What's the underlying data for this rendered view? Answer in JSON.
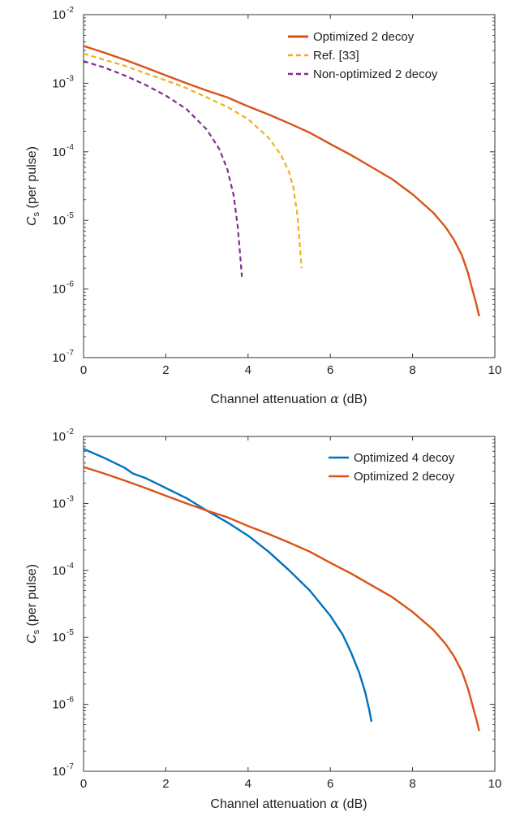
{
  "figure": {
    "colors": {
      "frame": "#333333",
      "text": "#222222",
      "background": "#ffffff"
    }
  },
  "chart_data": [
    {
      "type": "line",
      "xlabel_prefix": "Channel attenuation ",
      "xlabel_symbol": "α",
      "xlabel_suffix": " (dB)",
      "ylabel_symbol": "C",
      "ylabel_sub": "s",
      "ylabel_suffix": " (per pulse)",
      "xlim": [
        0,
        10
      ],
      "ylim_log10": [
        -7,
        -2
      ],
      "x_ticks": [
        0,
        2,
        4,
        6,
        8,
        10
      ],
      "y_ticks": [
        {
          "base": "10",
          "exp": "-2",
          "log": -2
        },
        {
          "base": "10",
          "exp": "-3",
          "log": -3
        },
        {
          "base": "10",
          "exp": "-4",
          "log": -4
        },
        {
          "base": "10",
          "exp": "-5",
          "log": -5
        },
        {
          "base": "10",
          "exp": "-6",
          "log": -6
        },
        {
          "base": "10",
          "exp": "-7",
          "log": -7
        }
      ],
      "legend_position": "top-right",
      "grid": false,
      "series": [
        {
          "name": "Optimized 2 decoy",
          "color": "#d95319",
          "dash": "solid",
          "x": [
            0,
            0.5,
            1,
            1.5,
            2,
            2.5,
            3,
            3.5,
            4,
            4.5,
            5,
            5.5,
            6,
            6.5,
            7,
            7.5,
            8,
            8.5,
            8.8,
            9,
            9.2,
            9.35,
            9.45,
            9.55,
            9.62
          ],
          "y": [
            0.0035,
            0.0028,
            0.0022,
            0.0017,
            0.0013,
            0.001,
            0.00078,
            0.00062,
            0.00046,
            0.00035,
            0.00026,
            0.00019,
            0.00013,
            9e-05,
            6e-05,
            4e-05,
            2.4e-05,
            1.3e-05,
            8e-06,
            5.3e-06,
            3.1e-06,
            1.7e-06,
            1e-06,
            6e-07,
            4e-07
          ]
        },
        {
          "name": "Ref. [33]",
          "color": "#edb120",
          "dash": "dashed",
          "x": [
            0,
            0.5,
            1,
            1.5,
            2,
            2.5,
            3,
            3.5,
            4,
            4.5,
            4.8,
            5,
            5.1,
            5.2,
            5.25,
            5.3
          ],
          "y": [
            0.0027,
            0.0022,
            0.0018,
            0.0014,
            0.0011,
            0.00085,
            0.00062,
            0.00045,
            0.0003,
            0.00016,
            9e-05,
            5e-05,
            3e-05,
            1.2e-05,
            5e-06,
            2e-06
          ]
        },
        {
          "name": "Non-optimized 2 decoy",
          "color": "#7e2f8e",
          "dash": "dashed",
          "x": [
            0,
            0.5,
            1,
            1.5,
            2,
            2.5,
            3,
            3.3,
            3.5,
            3.65,
            3.75,
            3.8,
            3.85
          ],
          "y": [
            0.0021,
            0.0017,
            0.0013,
            0.00095,
            0.00066,
            0.00042,
            0.00021,
            0.00011,
            5.5e-05,
            2.3e-05,
            8e-06,
            3.5e-06,
            1.5e-06
          ]
        }
      ]
    },
    {
      "type": "line",
      "xlabel_prefix": "Channel attenuation ",
      "xlabel_symbol": "α",
      "xlabel_suffix": " (dB)",
      "ylabel_symbol": "C",
      "ylabel_sub": "s",
      "ylabel_suffix": " (per pulse)",
      "xlim": [
        0,
        10
      ],
      "ylim_log10": [
        -7,
        -2
      ],
      "x_ticks": [
        0,
        2,
        4,
        6,
        8,
        10
      ],
      "y_ticks": [
        {
          "base": "10",
          "exp": "-2",
          "log": -2
        },
        {
          "base": "10",
          "exp": "-3",
          "log": -3
        },
        {
          "base": "10",
          "exp": "-4",
          "log": -4
        },
        {
          "base": "10",
          "exp": "-5",
          "log": -5
        },
        {
          "base": "10",
          "exp": "-6",
          "log": -6
        },
        {
          "base": "10",
          "exp": "-7",
          "log": -7
        }
      ],
      "legend_position": "top-right",
      "grid": false,
      "series": [
        {
          "name": "Optimized 4 decoy",
          "color": "#0072bd",
          "dash": "solid",
          "x": [
            0,
            0.5,
            1,
            1.2,
            1.5,
            2,
            2.5,
            3,
            3.5,
            4,
            4.5,
            5,
            5.5,
            6,
            6.3,
            6.5,
            6.7,
            6.85,
            6.95,
            7
          ],
          "y": [
            0.0065,
            0.0048,
            0.0034,
            0.0028,
            0.0024,
            0.0017,
            0.0012,
            0.00078,
            0.00052,
            0.00033,
            0.00019,
            0.0001,
            5e-05,
            2.1e-05,
            1.1e-05,
            6e-06,
            3e-06,
            1.5e-06,
            8e-07,
            5.5e-07
          ]
        },
        {
          "name": "Optimized 2 decoy",
          "color": "#d95319",
          "dash": "solid",
          "x": [
            0,
            0.5,
            1,
            1.5,
            2,
            2.5,
            3,
            3.5,
            4,
            4.5,
            5,
            5.5,
            6,
            6.5,
            7,
            7.5,
            8,
            8.5,
            8.8,
            9,
            9.2,
            9.35,
            9.45,
            9.55,
            9.62
          ],
          "y": [
            0.0035,
            0.0028,
            0.0022,
            0.0017,
            0.0013,
            0.001,
            0.00078,
            0.00062,
            0.00046,
            0.00035,
            0.00026,
            0.00019,
            0.00013,
            9e-05,
            6e-05,
            4e-05,
            2.4e-05,
            1.3e-05,
            8e-06,
            5.3e-06,
            3.1e-06,
            1.7e-06,
            1e-06,
            6e-07,
            4e-07
          ]
        }
      ]
    }
  ]
}
